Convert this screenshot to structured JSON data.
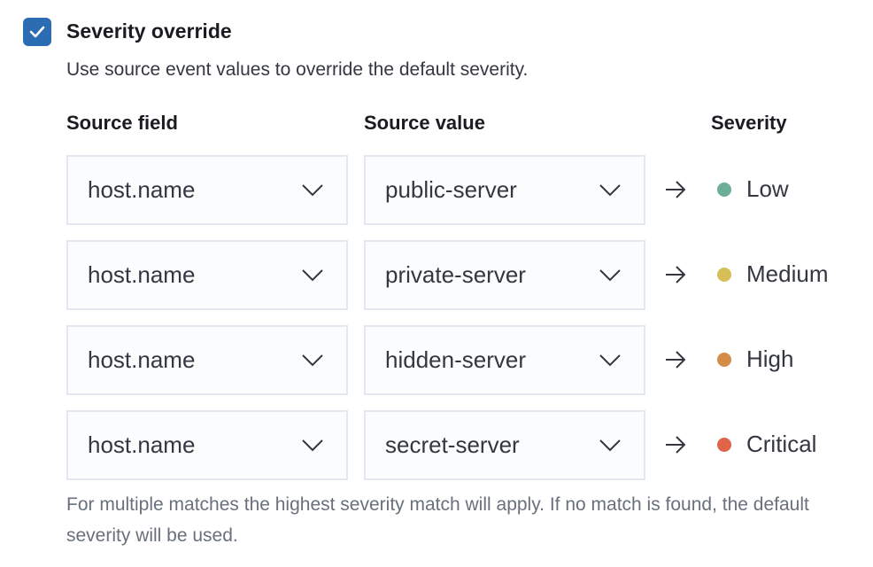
{
  "checkbox": {
    "checked": true,
    "label": "Severity override"
  },
  "description": "Use source event values to override the default severity.",
  "headers": {
    "source_field": "Source field",
    "source_value": "Source value",
    "severity": "Severity"
  },
  "rows": [
    {
      "field": "host.name",
      "value": "public-server",
      "severity": "Low",
      "color": "#6dae99"
    },
    {
      "field": "host.name",
      "value": "private-server",
      "severity": "Medium",
      "color": "#d6bf57"
    },
    {
      "field": "host.name",
      "value": "hidden-server",
      "severity": "High",
      "color": "#d48d48"
    },
    {
      "field": "host.name",
      "value": "secret-server",
      "severity": "Critical",
      "color": "#df6449"
    }
  ],
  "footnote": "For multiple matches the highest severity match will apply. If no match is found, the default severity will be used."
}
